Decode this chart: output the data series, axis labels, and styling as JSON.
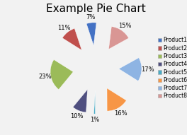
{
  "title": "Example Pie Chart",
  "labels": [
    "Product1",
    "Product2",
    "Product3",
    "Product4",
    "Product5",
    "Product6",
    "Product7",
    "Product8"
  ],
  "values": [
    7,
    11,
    23,
    10,
    1,
    16,
    17,
    15
  ],
  "colors": [
    "#4472c4",
    "#c0504d",
    "#9bbb59",
    "#4f4f7f",
    "#4bacc6",
    "#f79646",
    "#8eb4e3",
    "#d99694"
  ],
  "explode": [
    0.55,
    0.55,
    0.55,
    0.55,
    0.55,
    0.55,
    0.55,
    0.55
  ],
  "title_fontsize": 11,
  "legend_fontsize": 5.5,
  "pct_fontsize": 6.0,
  "startangle": 83,
  "background_color": "#f2f2f2"
}
